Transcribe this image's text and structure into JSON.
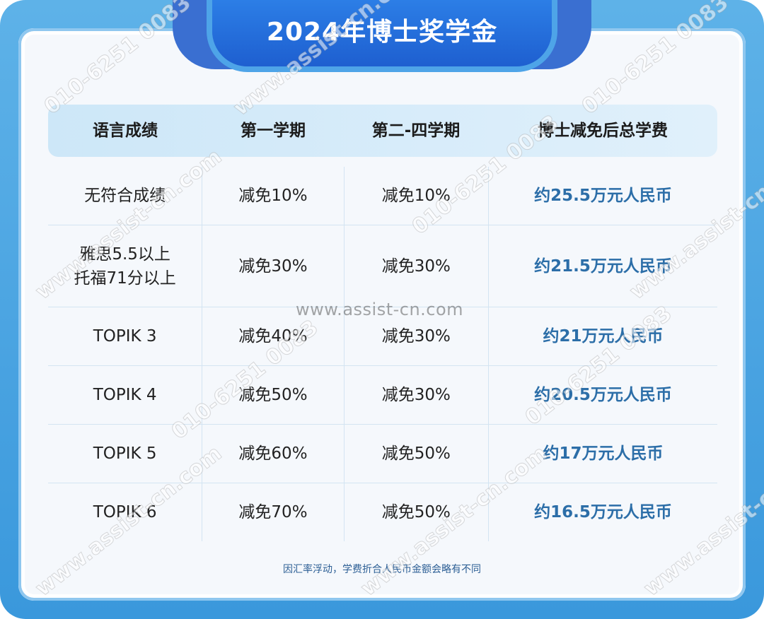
{
  "title": "2024年博士奖学金",
  "table": {
    "headers": [
      "语言成绩",
      "第一学期",
      "第二-四学期",
      "博士减免后总学费"
    ],
    "rows": [
      [
        "无符合成绩",
        "减免10%",
        "减免10%",
        "约25.5万元人民币"
      ],
      [
        "雅思5.5以上\n托福71分以上",
        "减免30%",
        "减免30%",
        "约21.5万元人民币"
      ],
      [
        "TOPIK 3",
        "减免40%",
        "减免30%",
        "约21万元人民币"
      ],
      [
        "TOPIK 4",
        "减免50%",
        "减免30%",
        "约20.5万元人民币"
      ],
      [
        "TOPIK 5",
        "减免60%",
        "减免50%",
        "约17万元人民币"
      ],
      [
        "TOPIK 6",
        "减免70%",
        "减免50%",
        "约16.5万元人民币"
      ]
    ]
  },
  "footnote": "因汇率浮动，学费折合人民币金额会略有不同",
  "watermark": "www.assist-cn.com",
  "watermark_texts": [
    "www.assist-cn.com",
    "010-6251 0083"
  ],
  "colors": {
    "frame": "#4aa6e6",
    "title_tab": "#1e5fd0",
    "header_bg": "#cde7f8",
    "fee_text": "#2c6ea8"
  }
}
